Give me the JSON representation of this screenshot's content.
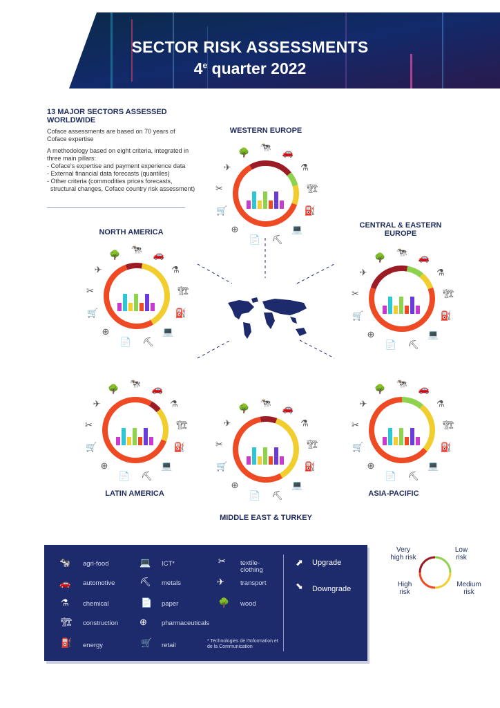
{
  "header": {
    "title": "SECTOR RISK ASSESSMENTS",
    "subtitle_num": "4",
    "subtitle_sup": "e",
    "subtitle_rest": " quarter 2022"
  },
  "intro": {
    "heading": "13 MAJOR SECTORS ASSESSED WORLDWIDE",
    "para1": "Coface assessments are based on 70 years of Coface expertise",
    "para2": "A methodology based on eight criteria, integrated in three main pillars:",
    "bullets": [
      "- Coface's expertise and payment experience data",
      "- External financial data forecasts (quantiles)",
      "- Other criteria (commodities prices forecasts, structural changes, Coface country risk assessment)"
    ]
  },
  "regions": {
    "western_europe": "WESTERN EUROPE",
    "central_eastern_europe": "CENTRAL & EASTERN EUROPE",
    "north_america": "NORTH AMERICA",
    "latin_america": "LATIN AMERICA",
    "asia_pacific": "ASIA-PACIFIC",
    "middle_east_turkey": "MIDDLE EAST & TURKEY"
  },
  "legend": {
    "sectors": {
      "agri_food": "agri-food",
      "automotive": "automotive",
      "chemical": "chemical",
      "construction": "construction",
      "energy": "energy",
      "ict": "ICT*",
      "metals": "metals",
      "paper": "paper",
      "pharmaceuticals": "pharmaceuticals",
      "retail": "retail",
      "textile_clothing": "textile-\nclothing",
      "transport": "transport",
      "wood": "wood"
    },
    "footnote": "* Technologies de l'Information et de la Communication",
    "upgrade": "Upgrade",
    "downgrade": "Downgrade"
  },
  "risk_scale": {
    "very_high": "Very\nhigh risk",
    "low": "Low\nrisk",
    "high": "High\nrisk",
    "medium": "Medium\nrisk"
  },
  "colors": {
    "navy": "#1d2a6b",
    "very_high": "#9b1c24",
    "high": "#ee4a24",
    "medium": "#f2cd2e",
    "low": "#8ed24e"
  }
}
